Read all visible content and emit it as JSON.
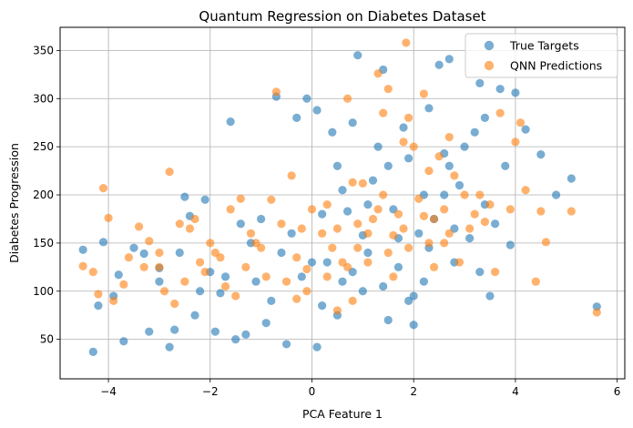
{
  "chart_data": {
    "type": "scatter",
    "title": "Quantum Regression on Diabetes Dataset",
    "xlabel": "PCA Feature 1",
    "ylabel": "Diabetes Progression",
    "xlim": [
      -4.95,
      6.15
    ],
    "ylim": [
      9,
      374
    ],
    "xticks": [
      -4,
      -2,
      0,
      2,
      4,
      6
    ],
    "yticks": [
      50,
      100,
      150,
      200,
      250,
      300,
      350
    ],
    "grid": true,
    "legend_position": "top-right",
    "series": [
      {
        "name": "True Targets",
        "color": "#1f77b4",
        "points": [
          [
            -4.5,
            143
          ],
          [
            -4.3,
            37
          ],
          [
            -4.1,
            151
          ],
          [
            -3.8,
            117
          ],
          [
            -3.7,
            48
          ],
          [
            -3.3,
            139
          ],
          [
            -3.0,
            124
          ],
          [
            -2.8,
            42
          ],
          [
            -2.5,
            198
          ],
          [
            -2.4,
            178
          ],
          [
            -2.1,
            195
          ],
          [
            -1.8,
            98
          ],
          [
            -1.6,
            276
          ],
          [
            -1.5,
            50
          ],
          [
            -1.2,
            150
          ],
          [
            -1.0,
            175
          ],
          [
            -0.9,
            67
          ],
          [
            -0.7,
            302
          ],
          [
            -0.5,
            45
          ],
          [
            -0.3,
            280
          ],
          [
            -0.1,
            300
          ],
          [
            0.1,
            288
          ],
          [
            0.2,
            180
          ],
          [
            0.3,
            130
          ],
          [
            0.4,
            265
          ],
          [
            0.5,
            230
          ],
          [
            0.6,
            205
          ],
          [
            0.7,
            183
          ],
          [
            0.8,
            275
          ],
          [
            0.9,
            345
          ],
          [
            1.0,
            158
          ],
          [
            1.1,
            190
          ],
          [
            1.2,
            215
          ],
          [
            1.3,
            250
          ],
          [
            1.4,
            330
          ],
          [
            1.5,
            230
          ],
          [
            1.6,
            185
          ],
          [
            1.7,
            125
          ],
          [
            1.8,
            270
          ],
          [
            1.9,
            238
          ],
          [
            2.0,
            95
          ],
          [
            2.1,
            160
          ],
          [
            2.2,
            200
          ],
          [
            2.3,
            290
          ],
          [
            2.4,
            175
          ],
          [
            2.5,
            335
          ],
          [
            2.6,
            243
          ],
          [
            2.7,
            341
          ],
          [
            2.8,
            130
          ],
          [
            2.9,
            210
          ],
          [
            3.0,
            250
          ],
          [
            3.2,
            265
          ],
          [
            3.3,
            316
          ],
          [
            3.4,
            190
          ],
          [
            3.5,
            95
          ],
          [
            3.7,
            310
          ],
          [
            3.8,
            230
          ],
          [
            4.0,
            306
          ],
          [
            4.2,
            268
          ],
          [
            4.5,
            242
          ],
          [
            4.8,
            200
          ],
          [
            5.1,
            217
          ],
          [
            5.6,
            84
          ],
          [
            -3.2,
            58
          ],
          [
            -2.6,
            140
          ],
          [
            -2.0,
            120
          ],
          [
            -1.4,
            170
          ],
          [
            -0.8,
            90
          ],
          [
            -0.2,
            115
          ],
          [
            0.2,
            85
          ],
          [
            0.8,
            120
          ],
          [
            1.4,
            105
          ],
          [
            1.9,
            90
          ],
          [
            2.3,
            145
          ],
          [
            2.8,
            165
          ],
          [
            3.3,
            120
          ],
          [
            3.9,
            148
          ],
          [
            -4.2,
            85
          ],
          [
            -3.5,
            145
          ],
          [
            -2.7,
            60
          ],
          [
            -2.2,
            100
          ],
          [
            -1.9,
            58
          ],
          [
            -1.1,
            110
          ],
          [
            -0.4,
            160
          ],
          [
            0.0,
            130
          ],
          [
            0.5,
            75
          ],
          [
            1.0,
            100
          ],
          [
            1.5,
            70
          ],
          [
            2.0,
            65
          ],
          [
            2.6,
            200
          ],
          [
            3.1,
            155
          ],
          [
            3.6,
            170
          ],
          [
            -3.9,
            95
          ],
          [
            -3.0,
            110
          ],
          [
            -2.3,
            75
          ],
          [
            -1.7,
            115
          ],
          [
            -1.3,
            55
          ],
          [
            -0.6,
            140
          ],
          [
            0.1,
            42
          ],
          [
            0.6,
            110
          ],
          [
            1.1,
            140
          ],
          [
            1.7,
            155
          ],
          [
            2.2,
            110
          ],
          [
            2.7,
            230
          ],
          [
            3.4,
            280
          ]
        ]
      },
      {
        "name": "QNN Predictions",
        "color": "#ff7f0e",
        "points": [
          [
            -4.5,
            126
          ],
          [
            -4.3,
            120
          ],
          [
            -4.1,
            207
          ],
          [
            -4.0,
            176
          ],
          [
            -3.7,
            107
          ],
          [
            -3.4,
            167
          ],
          [
            -3.2,
            152
          ],
          [
            -3.0,
            140
          ],
          [
            -2.8,
            224
          ],
          [
            -2.6,
            170
          ],
          [
            -2.4,
            165
          ],
          [
            -2.2,
            130
          ],
          [
            -2.0,
            150
          ],
          [
            -1.8,
            135
          ],
          [
            -1.6,
            185
          ],
          [
            -1.4,
            196
          ],
          [
            -1.2,
            160
          ],
          [
            -1.0,
            145
          ],
          [
            -0.8,
            195
          ],
          [
            -0.7,
            307
          ],
          [
            -0.6,
            170
          ],
          [
            -0.4,
            220
          ],
          [
            -0.3,
            135
          ],
          [
            -0.1,
            123
          ],
          [
            0.0,
            185
          ],
          [
            0.2,
            160
          ],
          [
            0.3,
            190
          ],
          [
            0.5,
            165
          ],
          [
            0.6,
            130
          ],
          [
            0.7,
            300
          ],
          [
            0.8,
            213
          ],
          [
            0.9,
            145
          ],
          [
            1.0,
            212
          ],
          [
            1.1,
            160
          ],
          [
            1.2,
            175
          ],
          [
            1.3,
            326
          ],
          [
            1.4,
            200
          ],
          [
            1.5,
            310
          ],
          [
            1.6,
            158
          ],
          [
            1.7,
            180
          ],
          [
            1.8,
            255
          ],
          [
            1.9,
            280
          ],
          [
            2.0,
            250
          ],
          [
            2.1,
            196
          ],
          [
            2.2,
            305
          ],
          [
            2.3,
            225
          ],
          [
            2.4,
            175
          ],
          [
            2.5,
            240
          ],
          [
            2.6,
            150
          ],
          [
            2.7,
            260
          ],
          [
            2.8,
            220
          ],
          [
            2.9,
            130
          ],
          [
            3.0,
            200
          ],
          [
            3.2,
            180
          ],
          [
            3.3,
            200
          ],
          [
            3.5,
            190
          ],
          [
            3.7,
            285
          ],
          [
            3.9,
            185
          ],
          [
            4.1,
            275
          ],
          [
            4.2,
            205
          ],
          [
            4.5,
            183
          ],
          [
            4.6,
            151
          ],
          [
            5.1,
            183
          ],
          [
            5.6,
            78
          ],
          [
            1.85,
            358
          ],
          [
            1.4,
            285
          ],
          [
            -3.9,
            90
          ],
          [
            -3.3,
            125
          ],
          [
            -2.9,
            100
          ],
          [
            -2.5,
            110
          ],
          [
            -2.1,
            120
          ],
          [
            -1.7,
            105
          ],
          [
            -1.3,
            125
          ],
          [
            -0.9,
            115
          ],
          [
            -0.5,
            110
          ],
          [
            -0.1,
            100
          ],
          [
            0.3,
            115
          ],
          [
            0.7,
            125
          ],
          [
            1.1,
            130
          ],
          [
            1.5,
            140
          ],
          [
            1.9,
            145
          ],
          [
            2.3,
            150
          ],
          [
            2.7,
            160
          ],
          [
            3.1,
            165
          ],
          [
            -3.6,
            135
          ],
          [
            -3.0,
            125
          ],
          [
            -2.3,
            175
          ],
          [
            -1.9,
            140
          ],
          [
            -1.1,
            150
          ],
          [
            -0.2,
            165
          ],
          [
            0.4,
            145
          ],
          [
            0.9,
            170
          ],
          [
            1.3,
            185
          ],
          [
            1.8,
            165
          ],
          [
            2.2,
            178
          ],
          [
            2.6,
            185
          ],
          [
            3.4,
            172
          ],
          [
            4.0,
            255
          ],
          [
            -4.2,
            97
          ],
          [
            -2.7,
            87
          ],
          [
            -1.5,
            95
          ],
          [
            -0.3,
            92
          ],
          [
            0.8,
            90
          ],
          [
            1.6,
            115
          ],
          [
            2.4,
            125
          ],
          [
            3.6,
            120
          ],
          [
            4.4,
            110
          ],
          [
            0.5,
            80
          ]
        ]
      }
    ]
  }
}
